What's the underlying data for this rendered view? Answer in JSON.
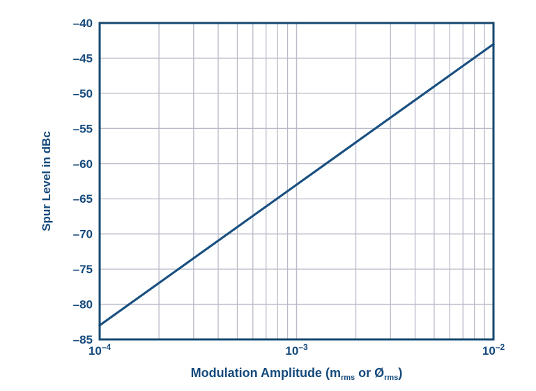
{
  "chart_data": {
    "type": "line",
    "title": "",
    "ylabel": "Spur Level in dBc",
    "xlabel_parts": {
      "pre": "Modulation Amplitude (m",
      "sub1": "rms",
      "mid": " or Ø",
      "sub2": "rms",
      "post": ")"
    },
    "xscale": "log",
    "xlim": [
      0.0001,
      0.01
    ],
    "ylim": [
      -85,
      -40
    ],
    "x_ticks": [
      {
        "base": "10",
        "exp": "–4",
        "value": 0.0001
      },
      {
        "base": "10",
        "exp": "–3",
        "value": 0.001
      },
      {
        "base": "10",
        "exp": "–2",
        "value": 0.01
      }
    ],
    "y_ticks": [
      {
        "label": "–40",
        "value": -40
      },
      {
        "label": "–45",
        "value": -45
      },
      {
        "label": "–50",
        "value": -50
      },
      {
        "label": "–55",
        "value": -55
      },
      {
        "label": "–60",
        "value": -60
      },
      {
        "label": "–65",
        "value": -65
      },
      {
        "label": "–70",
        "value": -70
      },
      {
        "label": "–75",
        "value": -75
      },
      {
        "label": "–80",
        "value": -80
      },
      {
        "label": "–85",
        "value": -85
      }
    ],
    "grid": {
      "horizontal": true,
      "vertical_minor_log": true,
      "legend": "none"
    },
    "series": [
      {
        "name": "spur-level-vs-modulation-amplitude",
        "slope_db_per_decade": 20,
        "points": [
          [
            0.0001,
            -83
          ],
          [
            0.001,
            -63
          ],
          [
            0.01,
            -43
          ]
        ]
      }
    ],
    "colors": {
      "line": "#1a5080",
      "frame": "#15476f",
      "grid": "#b9bac8",
      "text": "#154a7c",
      "background": "#ffffff"
    }
  }
}
